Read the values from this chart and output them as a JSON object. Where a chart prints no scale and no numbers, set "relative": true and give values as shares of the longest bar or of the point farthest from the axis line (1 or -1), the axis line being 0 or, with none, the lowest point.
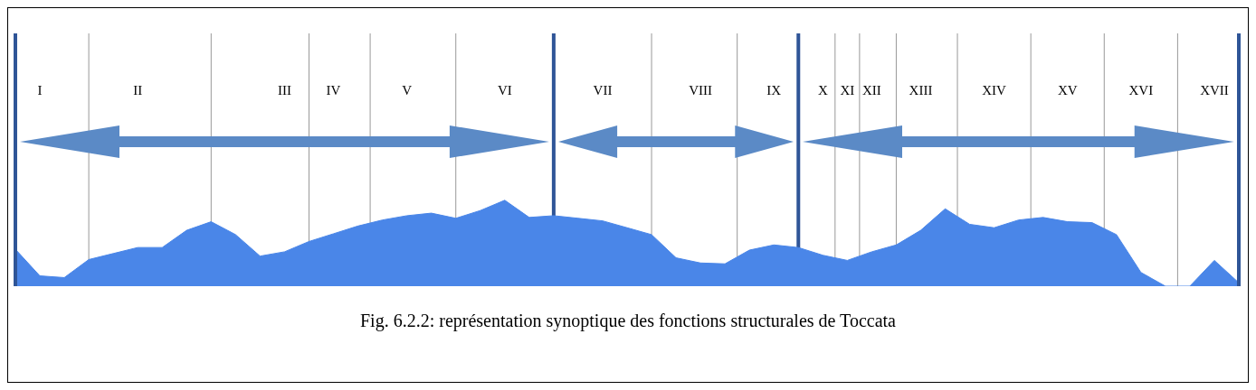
{
  "chart_data": {
    "type": "area",
    "title": "Fig. 6.2.2: représentation synoptique des fonctions structurales de Toccata",
    "relative": true,
    "color": "#4a86e8",
    "grid": "x",
    "categories": [
      null,
      "I",
      null,
      null,
      null,
      "II",
      null,
      null,
      null,
      null,
      null,
      "III",
      null,
      "IV",
      null,
      null,
      "V",
      null,
      null,
      null,
      "VI",
      null,
      null,
      null,
      "VII",
      null,
      null,
      null,
      "VIII",
      null,
      null,
      "IX",
      null,
      "X",
      "XI",
      "XII",
      null,
      "XIII",
      null,
      null,
      "XIV",
      null,
      null,
      "XV",
      null,
      null,
      "XVI",
      null,
      null,
      "XVII",
      null
    ],
    "values": [
      0.43,
      0.12,
      0.1,
      0.31,
      0.38,
      0.45,
      0.45,
      0.65,
      0.75,
      0.6,
      0.35,
      0.4,
      0.52,
      0.61,
      0.7,
      0.77,
      0.82,
      0.85,
      0.79,
      0.88,
      1.0,
      0.8,
      0.82,
      0.79,
      0.76,
      0.68,
      0.6,
      0.33,
      0.27,
      0.26,
      0.42,
      0.48,
      0.45,
      0.36,
      0.3,
      0.4,
      0.48,
      0.65,
      0.9,
      0.72,
      0.68,
      0.77,
      0.8,
      0.75,
      0.74,
      0.6,
      0.16,
      0,
      0,
      0.3,
      0.04
    ]
  }
}
